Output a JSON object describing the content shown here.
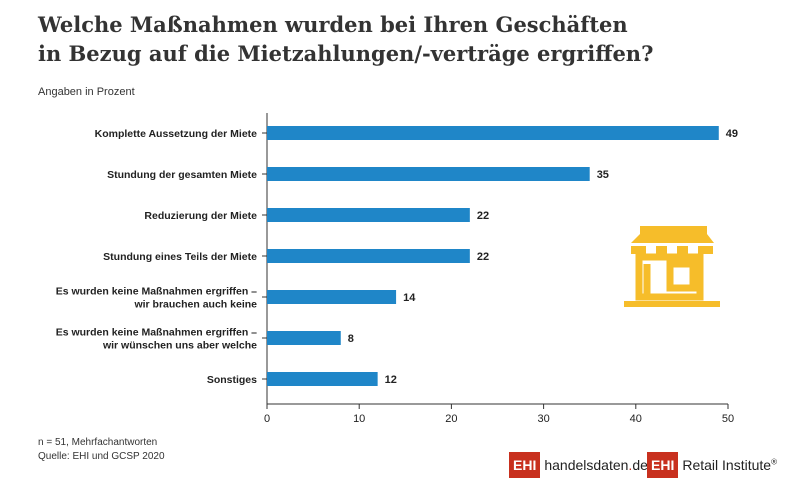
{
  "chart_data": {
    "type": "bar",
    "orientation": "horizontal",
    "title": "Welche Maßnahmen wurden bei Ihren Geschäften in Bezug auf die Mietzahlungen/-verträge ergriffen?",
    "title_lines": [
      "Welche Maßnahmen wurden bei Ihren Geschäften",
      "in Bezug auf die Mietzahlungen/-verträge ergriffen?"
    ],
    "subtitle": "Angaben in Prozent",
    "categories": [
      [
        "Komplette Aussetzung der Miete"
      ],
      [
        "Stundung der gesamten Miete"
      ],
      [
        "Reduzierung der Miete"
      ],
      [
        "Stundung eines Teils der Miete"
      ],
      [
        "Es wurden keine Maßnahmen ergriffen –",
        "wir brauchen auch keine"
      ],
      [
        "Es wurden keine Maßnahmen ergriffen –",
        "wir wünschen uns aber welche"
      ],
      [
        "Sonstiges"
      ]
    ],
    "values": [
      49,
      35,
      22,
      22,
      14,
      8,
      12
    ],
    "xlim": [
      0,
      50
    ],
    "xticks": [
      0,
      10,
      20,
      30,
      40,
      50
    ],
    "bar_color": "#1f86c8",
    "grid": false
  },
  "footnotes": {
    "n": "n = 51, Mehrfachantworten",
    "source": "Quelle: EHI und GCSP 2020"
  },
  "logos": {
    "box": "EHI",
    "l1": "handelsdaten",
    "l1_dot": ".",
    "l1_tld": "de",
    "l2": "Retail Institute",
    "reg": "®"
  },
  "icon": {
    "name": "store-icon",
    "color": "#f6bd2a"
  }
}
